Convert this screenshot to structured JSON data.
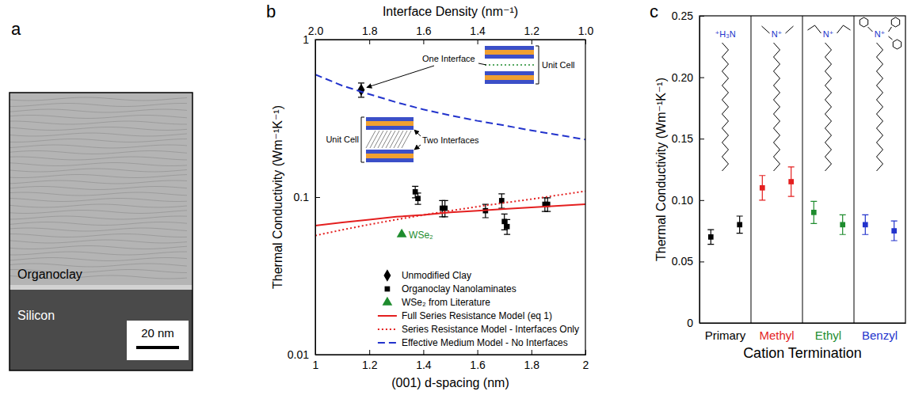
{
  "chart_data": [
    {
      "type": "image",
      "panel": "a",
      "labels": [
        "Organoclay",
        "Silicon"
      ],
      "scale_bar": "20 nm"
    },
    {
      "type": "scatter",
      "panel": "b",
      "x_label": "(001) d-spacing (nm)",
      "x2_label": "Interface Density (nm⁻¹)",
      "y_label": "Thermal Conductivity (Wm⁻¹K⁻¹)",
      "log": "y",
      "xlim": [
        1,
        2
      ],
      "xticks": [
        1,
        1.2,
        1.4,
        1.6,
        1.8,
        2
      ],
      "x2lim": [
        2,
        1
      ],
      "x2ticks": [
        {
          "value": 2,
          "label": "2.0"
        },
        1.8,
        1.6,
        1.4,
        1.2,
        {
          "value": 1,
          "label": "1.0"
        }
      ],
      "ylim": [
        0.01,
        1
      ],
      "yticks": [
        0.01,
        0.1,
        1
      ],
      "legend": "lower right",
      "series": [
        {
          "name": "Unmodified Clay",
          "color": "#000000",
          "marker": "diamond",
          "x": [
            1.17
          ],
          "values": [
            0.48
          ],
          "errors": [
            0.05
          ]
        },
        {
          "name": "Organoclay Nanolaminates",
          "color": "#000000",
          "marker": "square",
          "x": [
            1.37,
            1.38,
            1.47,
            1.48,
            1.63,
            1.69,
            1.7,
            1.71,
            1.85,
            1.86
          ],
          "values": [
            0.108,
            0.098,
            0.085,
            0.085,
            0.082,
            0.095,
            0.07,
            0.065,
            0.09,
            0.09
          ],
          "errors": [
            0.009,
            0.008,
            0.01,
            0.01,
            0.008,
            0.01,
            0.008,
            0.007,
            0.009,
            0.009
          ]
        },
        {
          "name": "WSe₂ from Literature",
          "color": "#1e8c2e",
          "marker": "triangle",
          "x": [
            1.32
          ],
          "values": [
            0.058
          ]
        },
        {
          "name": "Full Series Resistance Model (eq 1)",
          "type": "line",
          "color": "#e41f1f",
          "line_style": "solid",
          "x": [
            1,
            1.1,
            1.2,
            1.3,
            1.4,
            1.5,
            1.6,
            1.7,
            1.8,
            1.9,
            2
          ],
          "values": [
            0.066,
            0.069,
            0.072,
            0.075,
            0.077,
            0.08,
            0.082,
            0.084,
            0.086,
            0.088,
            0.09
          ]
        },
        {
          "name": "Series Resistance Model - Interfaces Only",
          "type": "line",
          "color": "#e41f1f",
          "line_style": "dotted",
          "x": [
            1,
            1.1,
            1.2,
            1.3,
            1.4,
            1.5,
            1.6,
            1.7,
            1.8,
            1.9,
            2
          ],
          "values": [
            0.057,
            0.062,
            0.067,
            0.072,
            0.077,
            0.082,
            0.087,
            0.092,
            0.097,
            0.103,
            0.109
          ]
        },
        {
          "name": "Effective Medium Model - No Interfaces",
          "type": "line",
          "color": "#2233cc",
          "line_style": "dashed",
          "x": [
            1,
            1.1,
            1.2,
            1.3,
            1.4,
            1.5,
            1.6,
            1.7,
            1.8,
            1.9,
            2
          ],
          "values": [
            0.6,
            0.51,
            0.45,
            0.4,
            0.36,
            0.33,
            0.305,
            0.285,
            0.265,
            0.248,
            0.232
          ]
        }
      ],
      "annotations": [
        "One Interface",
        "Unit Cell",
        "Two Interfaces",
        "Unit Cell",
        "WSe₂"
      ]
    },
    {
      "type": "scatter",
      "panel": "c",
      "x_label": "Cation Termination",
      "y_label": "Thermal Conductivity (Wm⁻¹K⁻¹)",
      "categories": [
        "Primary",
        "Methyl",
        "Ethyl",
        "Benzyl"
      ],
      "colors": [
        "#000000",
        "#e41f1f",
        "#1e8c2e",
        "#2233cc"
      ],
      "marker": "square",
      "values": [
        [
          0.07,
          0.08
        ],
        [
          0.11,
          0.115
        ],
        [
          0.09,
          0.08
        ],
        [
          0.08,
          0.075
        ]
      ],
      "errors": [
        [
          0.006,
          0.007
        ],
        [
          0.01,
          0.012
        ],
        [
          0.009,
          0.008
        ],
        [
          0.008,
          0.008
        ]
      ],
      "structure_labels": [
        "⁺H₃N",
        "N⁺",
        "N⁺",
        "N⁺"
      ],
      "ylim": [
        0,
        0.25
      ],
      "yticks": [
        0,
        0.05,
        {
          "value": 0.1,
          "label": "0.10"
        },
        0.15,
        {
          "value": 0.2,
          "label": "0.20"
        },
        0.25
      ]
    }
  ]
}
